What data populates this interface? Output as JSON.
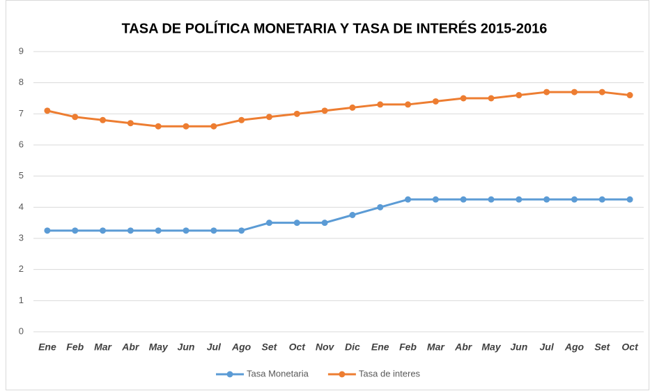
{
  "chart_data": {
    "type": "line",
    "title": "TASA DE POLÍTICA MONETARIA Y TASA DE INTERÉS 2015-2016",
    "categories": [
      "Ene",
      "Feb",
      "Mar",
      "Abr",
      "May",
      "Jun",
      "Jul",
      "Ago",
      "Set",
      "Oct",
      "Nov",
      "Dic",
      "Ene",
      "Feb",
      "Mar",
      "Abr",
      "May",
      "Jun",
      "Jul",
      "Ago",
      "Set",
      "Oct"
    ],
    "series": [
      {
        "name": "Tasa Monetaria",
        "color": "#5b9bd5",
        "values": [
          3.25,
          3.25,
          3.25,
          3.25,
          3.25,
          3.25,
          3.25,
          3.25,
          3.5,
          3.5,
          3.5,
          3.75,
          4.0,
          4.25,
          4.25,
          4.25,
          4.25,
          4.25,
          4.25,
          4.25,
          4.25,
          4.25
        ]
      },
      {
        "name": "Tasa de interes",
        "color": "#ed7d31",
        "values": [
          7.1,
          6.9,
          6.8,
          6.7,
          6.6,
          6.6,
          6.6,
          6.8,
          6.9,
          7.0,
          7.1,
          7.2,
          7.3,
          7.3,
          7.4,
          7.5,
          7.5,
          7.6,
          7.7,
          7.7,
          7.7,
          7.6
        ]
      }
    ],
    "ylim": [
      0,
      9
    ],
    "yticks": [
      0,
      1,
      2,
      3,
      4,
      5,
      6,
      7,
      8,
      9
    ],
    "grid": true,
    "legend": "bottom"
  }
}
